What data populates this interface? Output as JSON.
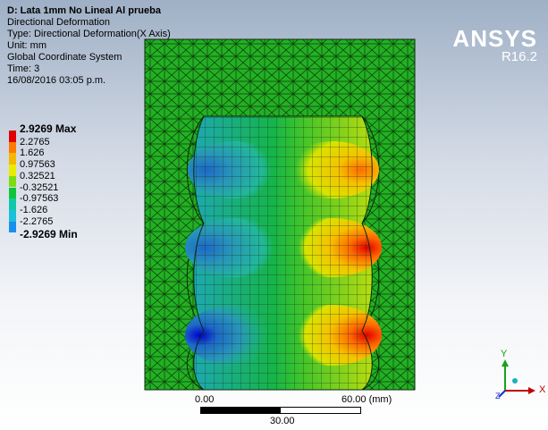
{
  "info": {
    "title": "D: Lata 1mm No Lineal Al prueba",
    "result": "Directional Deformation",
    "type": "Type: Directional Deformation(X Axis)",
    "unit": "Unit: mm",
    "coord": "Global Coordinate System",
    "time": "Time: 3",
    "date": "16/08/2016 03:05 p.m."
  },
  "logo": {
    "brand": "ANSYS",
    "version": "R16.2"
  },
  "legend": {
    "items": [
      {
        "label": "2.9269 Max",
        "color": "#e00000",
        "bold": true
      },
      {
        "label": "2.2765",
        "color": "#ff7a00",
        "bold": false
      },
      {
        "label": "1.626",
        "color": "#f5b800",
        "bold": false
      },
      {
        "label": "0.97563",
        "color": "#e8ec00",
        "bold": false
      },
      {
        "label": "0.32521",
        "color": "#7ddc10",
        "bold": false
      },
      {
        "label": "-0.32521",
        "color": "#12c43a",
        "bold": false
      },
      {
        "label": "-0.97563",
        "color": "#10c9a8",
        "bold": false
      },
      {
        "label": "-1.626",
        "color": "#1cc0d8",
        "bold": false
      },
      {
        "label": "-2.2765",
        "color": "#1890ee",
        "bold": false
      },
      {
        "label": "-2.9269 Min",
        "color": "#0000dd",
        "bold": true
      }
    ]
  },
  "scale": {
    "left": "0.00",
    "right": "60.00 (mm)",
    "mid": "30.00"
  },
  "triad": {
    "x": "X",
    "y": "Y",
    "z": "Z"
  }
}
